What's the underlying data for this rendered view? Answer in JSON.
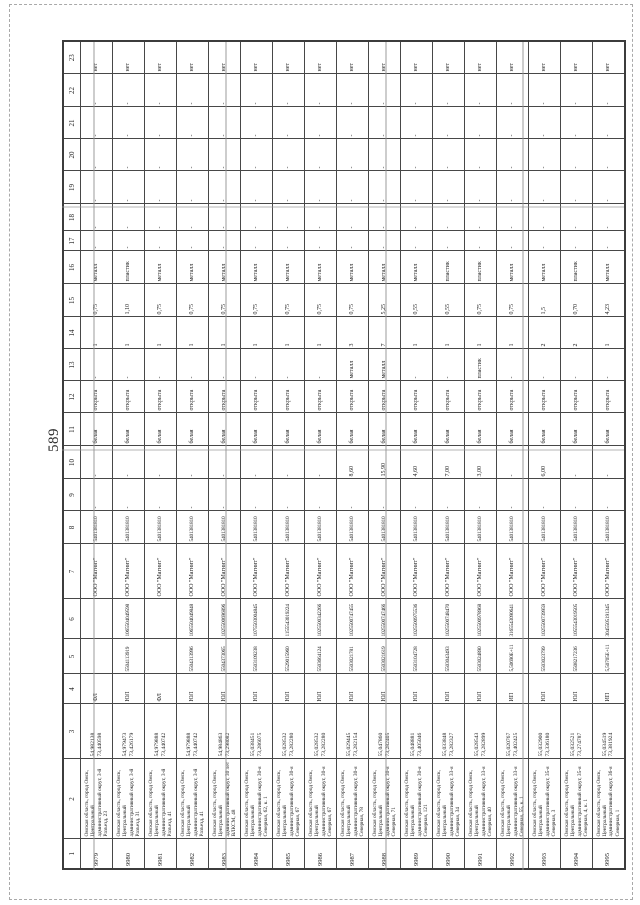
{
  "page": {
    "number": "589"
  },
  "table": {
    "header": [
      "1",
      "2",
      "3",
      "4",
      "5",
      "6",
      "7",
      "8",
      "9",
      "10",
      "11",
      "12",
      "13",
      "14",
      "15",
      "16",
      "17",
      "18",
      "19",
      "20",
      "21",
      "22",
      "23"
    ],
    "rows": [
      {
        "cells": [
          "9979",
          "Омская область, город Омск, Центральный административный округ, 3-й Разъезд, 23",
          "54,982138\n73,440598",
          "ФЛ",
          "",
          "",
          "ООО \"Магнит\"",
          "5401381810",
          "-",
          "-",
          "белая",
          "открыта",
          "-",
          "1",
          "0,75",
          "металл",
          "-",
          "-",
          "-",
          "-",
          "-",
          "-",
          "нет"
        ]
      },
      {
        "cells": [
          "9980",
          "Омская область, город Омск, Центральный административный округ, 3-й Разъезд, 31",
          "54,979473\n73,426179",
          "ЮЛ",
          "5504113919",
          "1065504049598",
          "ООО \"Магнит\"",
          "5401381810",
          "-",
          "-",
          "белая",
          "открыта",
          "-",
          "1",
          "1,10",
          "пластик",
          "-",
          "-",
          "-",
          "-",
          "-",
          "-",
          "нет"
        ]
      },
      {
        "cells": [
          "9981",
          "Омская область, город Омск, Центральный административный округ, 3-й Разъезд, 41",
          "54,979888\n73,440742",
          "ФЛ",
          "",
          "",
          "ООО \"Магнит\"",
          "5401381810",
          "-",
          "-",
          "белая",
          "открыта",
          "-",
          "1",
          "0,75",
          "металл",
          "-",
          "-",
          "-",
          "-",
          "-",
          "-",
          "нет"
        ]
      },
      {
        "cells": [
          "9982",
          "Омская область, город Омск, Центральный административный округ, 3-й Разъезд, 41",
          "54,979888\n73,440742",
          "ЮЛ",
          "5504313996",
          "1065504049848",
          "ООО \"Магнит\"",
          "5401381810",
          "-",
          "-",
          "белая",
          "открыта",
          "-",
          "1",
          "0,75",
          "металл",
          "-",
          "-",
          "-",
          "-",
          "-",
          "-",
          "нет"
        ]
      },
      {
        "cells": [
          "9983",
          "Омская область, город Омск, Центральный административный округ, 30 лет ВЛКСМ, 48",
          "54,984863\n73,298082",
          "ЮЛ",
          "5504373065",
          "1025500696896",
          "ООО \"Магнит\"",
          "5401381810",
          "-",
          "-",
          "белая",
          "открыта",
          "-",
          "1",
          "0,75",
          "металл",
          "-",
          "-",
          "-",
          "-",
          "-",
          "-",
          "нет"
        ]
      },
      {
        "cells": [
          "9984",
          "Омская область, город Омск, Центральный административный округ, 30-я Северная, 62, к. 1",
          "55,038451\n73,286075",
          "ЮЛ",
          "5503109238",
          "1075503004845",
          "ООО \"Магнит\"",
          "5401381810",
          "-",
          "-",
          "белая",
          "открыта",
          "-",
          "1",
          "0,75",
          "металл",
          "-",
          "-",
          "-",
          "-",
          "-",
          "-",
          "нет"
        ]
      },
      {
        "cells": [
          "9985",
          "Омская область, город Омск, Центральный административный округ, 30-я Северная, 67",
          "55,028532\n73,282280",
          "ЮЛ",
          "5529015960",
          "1155543019224",
          "ООО \"Магнит\"",
          "5401381810",
          "-",
          "-",
          "белая",
          "открыта",
          "-",
          "1",
          "0,75",
          "металл",
          "-",
          "-",
          "-",
          "-",
          "-",
          "-",
          "нет"
        ]
      },
      {
        "cells": [
          "9986",
          "Омская область, город Омск, Центральный административный округ, 30-я Северная, 67",
          "55,028532\n73,282280",
          "ЮЛ",
          "5503664124",
          "1025500342266",
          "ООО \"Магнит\"",
          "5401381810",
          "-",
          "-",
          "белая",
          "открыта",
          "-",
          "1",
          "0,75",
          "металл",
          "-",
          "-",
          "-",
          "-",
          "-",
          "-",
          "нет"
        ]
      },
      {
        "cells": [
          "9987",
          "Омская область, город Омск, Центральный административный округ, 30-я Северная, 78",
          "55,029445\n73,282154",
          "ЮЛ",
          "5503021781",
          "1025500747455",
          "ООО \"Магнит\"",
          "5401381810",
          "-",
          "8,60",
          "белая",
          "открыта",
          "металл",
          "3",
          "0,75",
          "металл",
          "-",
          "-",
          "-",
          "-",
          "-",
          "-",
          "нет"
        ]
      },
      {
        "cells": [
          "9988",
          "Омская область, город Омск, Центральный административный округ, 30-я Северная, 71",
          "55,047860\n73,282405",
          "ЮЛ",
          "5503021619",
          "1025500747466",
          "ООО \"Магнит\"",
          "5401381810",
          "-",
          "15,90",
          "белая",
          "открыта",
          "металл",
          "7",
          "5,25",
          "металл",
          "-",
          "-",
          "-",
          "-",
          "-",
          "-",
          "нет"
        ]
      },
      {
        "cells": [
          "9989",
          "Омская область, город Омск, Центральный административный округ, 30-я Северная, 121",
          "55,048881\n73,405046",
          "ЮЛ",
          "5503104728",
          "1025500975536",
          "ООО \"Магнит\"",
          "5401381810",
          "-",
          "4,60",
          "белая",
          "открыта",
          "-",
          "1",
          "0,55",
          "металл",
          "-",
          "-",
          "-",
          "-",
          "-",
          "-",
          "нет"
        ]
      },
      {
        "cells": [
          "9990",
          "Омская область, город Омск, Центральный административный округ, 33-я Северная, 34",
          "55,033848\n73,282327",
          "ЮЛ",
          "5503043493",
          "1025500748470",
          "ООО \"Магнит\"",
          "5401381810",
          "-",
          "7,00",
          "белая",
          "открыта",
          "-",
          "1",
          "0,55",
          "пластик",
          "-",
          "-",
          "-",
          "-",
          "-",
          "-",
          "нет"
        ]
      },
      {
        "cells": [
          "9991",
          "Омская область, город Омск, Центральный административный округ, 33-я Северная, 40",
          "55,028543\n73,282899",
          "ЮЛ",
          "5503024890",
          "1025500978968",
          "ООО \"Магнит\"",
          "5401381810",
          "-",
          "3,00",
          "белая",
          "открыта",
          "пластик",
          "1",
          "0,75",
          "пластик",
          "-",
          "-",
          "-",
          "-",
          "-",
          "-",
          "нет"
        ]
      },
      {
        "cells": [
          "9992",
          "Омская область, город Омск, Центральный административный округ, 33-я Северная, 55, к. 1",
          "55,020767\n73,402425",
          "ИП",
          "5,50690E+11",
          "3165543090641",
          "ООО \"Магнит\"",
          "5401381810",
          "-",
          "-",
          "белая",
          "открыта",
          "-",
          "1",
          "0,75",
          "металл",
          "-",
          "-",
          "-",
          "-",
          "-",
          "-",
          "нет"
        ]
      },
      {
        "cells": [
          "9993",
          "Омская область, город Омск, Центральный административный округ, 35-я Северная, 3",
          "55,032900\n73,336180",
          "ЮЛ",
          "5503023799",
          "1025500739959",
          "ООО \"Магнит\"",
          "5401381810",
          "-",
          "6,00",
          "белая",
          "открыта",
          "-",
          "2",
          "1,5",
          "металл",
          "-",
          "-",
          "-",
          "-",
          "-",
          "-",
          "нет"
        ]
      },
      {
        "cells": [
          "9994",
          "Омская область, город Омск, Центральный административный округ, 35-я Северная, 4, к. 1",
          "55,032521\n73,274787",
          "ЮЛ",
          "5508217236",
          "1055543019505",
          "ООО \"Магнит\"",
          "5401381810",
          "-",
          "-",
          "белая",
          "открыта",
          "-",
          "2",
          "0,70",
          "пластик",
          "-",
          "-",
          "-",
          "-",
          "-",
          "-",
          "нет"
        ]
      },
      {
        "cells": [
          "9995",
          "Омская область, город Омск, Центральный административный округ, 36-я Северная, 1",
          "55,034519\n73,381924",
          "ИП",
          "5,50705E+11",
          "3045505191345",
          "ООО \"Магнит\"",
          "5401381810",
          "-",
          "-",
          "белая",
          "открыта",
          "-",
          "1",
          "4,23",
          "металл",
          "-",
          "-",
          "-",
          "-",
          "-",
          "-",
          "нет"
        ]
      }
    ]
  }
}
